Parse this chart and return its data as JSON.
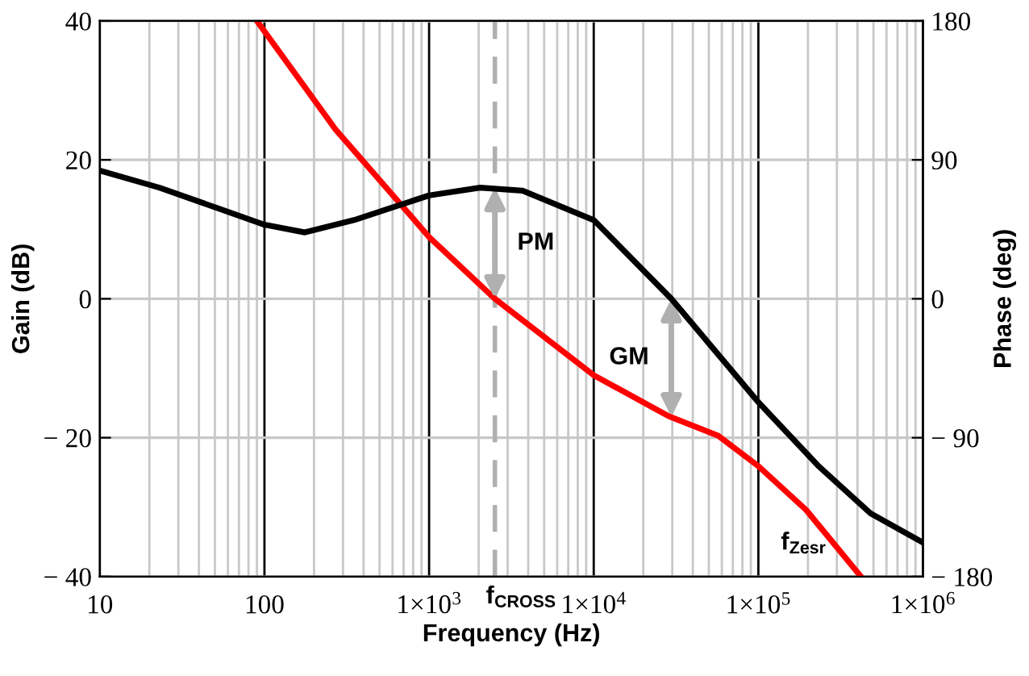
{
  "chart_data": {
    "type": "line",
    "xlabel": "Frequency (Hz)",
    "ylabel": "Gain (dB)",
    "y2label": "Phase (deg)",
    "log": "x",
    "grid": true,
    "marker": "none",
    "line_style": "solid",
    "xlim": [
      10,
      1000000
    ],
    "xticks": [
      {
        "value": 10,
        "label": "10"
      },
      {
        "value": 100,
        "label": "100"
      },
      {
        "value": 1000,
        "label": "1×10$^{3}$"
      },
      {
        "value": 10000,
        "label": "1×10$^{4}$"
      },
      {
        "value": 100000,
        "label": "1×10$^{5}$"
      },
      {
        "value": 1000000,
        "label": "1×10$^{6}$"
      }
    ],
    "ylim": [
      -40,
      40
    ],
    "yticks": [
      {
        "value": -40,
        "label": "− 40"
      },
      {
        "value": -20,
        "label": "− 20"
      },
      0,
      20,
      40
    ],
    "y2lim": [
      -180,
      180
    ],
    "y2ticks": [
      {
        "value": -180,
        "label": "− 180"
      },
      {
        "value": -90,
        "label": "− 90"
      },
      0,
      90,
      180
    ],
    "series": [
      {
        "color": "#ff0000",
        "x": [
          90,
          270,
          1000,
          2510,
          10000,
          28500,
          57000,
          100000,
          195000,
          420000
        ],
        "values": [
          40,
          24.4,
          8.9,
          0,
          -11,
          -16.9,
          -19.7,
          -24.1,
          -30.4,
          -40
        ]
      },
      {
        "color": "#000000",
        "axis": "y2",
        "x": [
          10,
          23,
          100,
          176,
          350,
          1000,
          2040,
          3700,
          10000,
          29600,
          100000,
          230000,
          480000,
          1000000
        ],
        "values": [
          83,
          72,
          48,
          43,
          51,
          67,
          72,
          70,
          51,
          0,
          -67,
          -108,
          -139,
          -158
        ]
      }
    ],
    "ref_lines": [
      {
        "axis": "x",
        "value": 2510,
        "label": "f$_{CROSS}$",
        "color": "#b0b0b0",
        "line_style": "dashed"
      }
    ],
    "annotations": [
      {
        "text": "PM",
        "x": 2510,
        "y": 16
      },
      {
        "text": "GM",
        "x": 29600,
        "y": -17
      },
      "f$_{Zesr}$"
    ]
  }
}
